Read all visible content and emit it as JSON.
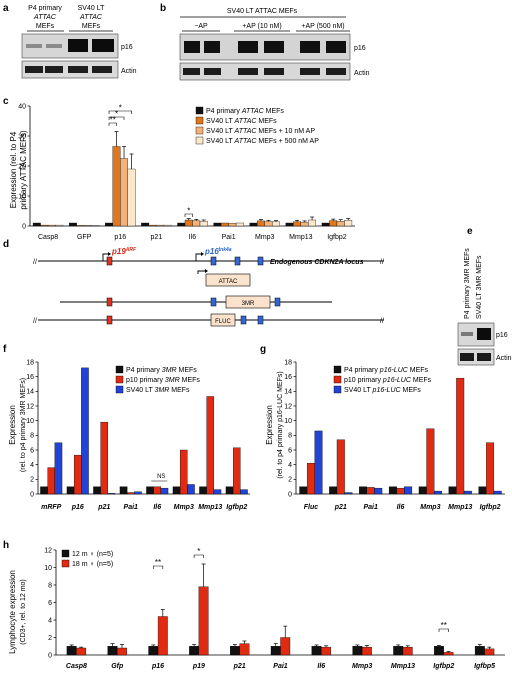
{
  "colors": {
    "black": "#111111",
    "orange": "#e0771f",
    "peach": "#f4b27a",
    "cream": "#fbe7cc",
    "red": "#e02a12",
    "blue": "#2243d8",
    "p19_label": "#d42a1a",
    "p16_label": "#2a66c8"
  },
  "panel_a": {
    "letter": "a",
    "col1_line1": "P4 primary",
    "col1_line2": "ATTAC",
    "col1_line3": "MEFs",
    "col2_line1": "SV40 LT",
    "col2_line2": "ATTAC",
    "col2_line3": "MEFs",
    "blot_labels": [
      "p16",
      "Actin"
    ]
  },
  "panel_b": {
    "letter": "b",
    "header": "SV40 LT ATTAC MEFs",
    "lanes": [
      "−AP",
      "+AP (10 nM)",
      "+AP (500 nM)"
    ],
    "blot_labels": [
      "p16",
      "Actin"
    ]
  },
  "panel_c": {
    "letter": "c",
    "ylabel_line1": "Expression (rel. to P4",
    "ylabel_line2": "primary ATTAC MEFs)",
    "sig_labels": [
      "*",
      "*",
      "**",
      "*"
    ],
    "chart_data": {
      "type": "bar",
      "categories": [
        "Casp8",
        "GFP",
        "p16",
        "p21",
        "Il6",
        "Pai1",
        "Mmp3",
        "Mmp13",
        "Igfbp2"
      ],
      "ylim": [
        0,
        40
      ],
      "yticks": [
        "0",
        "10",
        "20",
        "30",
        "40"
      ],
      "legend": "top-right",
      "series": [
        {
          "name": "P4 primary ATTAC MEFs",
          "values": [
            1,
            1,
            1,
            1,
            1,
            1,
            1,
            1,
            1
          ],
          "errors": [
            0,
            0,
            0,
            0,
            0,
            0,
            0,
            0,
            0
          ]
        },
        {
          "name": "SV40 LT ATTAC MEFs",
          "values": [
            0.3,
            0.2,
            26.5,
            0.3,
            2.0,
            1.0,
            1.7,
            1.4,
            1.8
          ],
          "errors": [
            0,
            0,
            5,
            0,
            0.5,
            0,
            0.5,
            0.5,
            0.5
          ]
        },
        {
          "name": "SV40 LT ATTAC MEFs + 10 nM AP",
          "values": [
            0.3,
            0.2,
            22.5,
            0.3,
            1.8,
            0.9,
            1.5,
            1.3,
            1.6
          ],
          "errors": [
            0,
            0,
            4,
            0,
            0.4,
            0,
            0.4,
            0.4,
            0.5
          ]
        },
        {
          "name": "SV40 LT ATTAC MEFs + 500 nM AP",
          "values": [
            0.3,
            0.2,
            19,
            0.3,
            1.6,
            1.0,
            1.4,
            2.0,
            1.9
          ],
          "errors": [
            0,
            0,
            5,
            0,
            0.4,
            0,
            0.4,
            1.0,
            0.6
          ]
        }
      ]
    }
  },
  "panel_d": {
    "letter": "d",
    "gene_p19": "p19",
    "gene_p19_sup": "ARF",
    "gene_p16": "p16",
    "gene_p16_sup": "Ink4a",
    "locus_label": "Endogenous CDKN2A locus",
    "box_attac": "ATTAC",
    "box_3mr": "3MR",
    "box_fluc": "FLUC"
  },
  "panel_e": {
    "letter": "e",
    "col1": "P4 primary 3MR MEFs",
    "col2": "SV40 LT 3MR MEFs",
    "blot_labels": [
      "p16",
      "Actin"
    ]
  },
  "panel_f": {
    "letter": "f",
    "ylabel_line1": "Expression",
    "ylabel_line2": "(rel. to p4 primary 3MR MEFs)",
    "ns_label": "NS",
    "chart_data": {
      "type": "bar",
      "categories": [
        "mRFP",
        "p16",
        "p21",
        "Pai1",
        "Il6",
        "Mmp3",
        "Mmp13",
        "Igfbp2"
      ],
      "ylim": [
        0,
        18
      ],
      "yticks": [
        "0",
        "2",
        "4",
        "6",
        "8",
        "10",
        "12",
        "14",
        "16",
        "18"
      ],
      "legend": "top-right",
      "series": [
        {
          "name": "P4 primary 3MR MEFs",
          "values": [
            1,
            1,
            1,
            1,
            1,
            1,
            1,
            1
          ]
        },
        {
          "name": "p10 primary 3MR MEFs",
          "values": [
            3.6,
            5.3,
            9.8,
            0.2,
            1.0,
            6.0,
            13.3,
            6.3
          ]
        },
        {
          "name": "SV40 LT 3MR MEFs",
          "values": [
            7.0,
            17.2,
            0.1,
            0.3,
            0.8,
            1.3,
            0.6,
            0.6
          ]
        }
      ]
    }
  },
  "panel_g": {
    "letter": "g",
    "ylabel_line1": "Expression",
    "ylabel_line2": "(rel. to p4 primary p16-LUC MEFs)",
    "chart_data": {
      "type": "bar",
      "categories": [
        "Fluc",
        "p21",
        "Pai1",
        "Il6",
        "Mmp3",
        "Mmp13",
        "Igfbp2"
      ],
      "ylim": [
        0,
        18
      ],
      "yticks": [
        "0",
        "2",
        "4",
        "6",
        "8",
        "10",
        "12",
        "14",
        "16",
        "18"
      ],
      "legend": "top-right",
      "series": [
        {
          "name": "P4 primary p16-LUC MEFs",
          "values": [
            1,
            1,
            1,
            1,
            1,
            1,
            1
          ]
        },
        {
          "name": "p10 primary p16-LUC MEFs",
          "values": [
            4.2,
            7.4,
            0.9,
            0.8,
            8.9,
            15.8,
            7.0
          ]
        },
        {
          "name": "SV40 LT p16-LUC MEFs",
          "values": [
            8.6,
            0.2,
            0.8,
            1.0,
            0.4,
            0.4,
            0.4
          ]
        }
      ]
    }
  },
  "panel_h": {
    "letter": "h",
    "ylabel_line1": "Lymphocyte expression",
    "ylabel_line2": "(CD3+, rel. to 12 mo)",
    "sig_labels": [
      "**",
      "*",
      "**"
    ],
    "chart_data": {
      "type": "bar",
      "categories": [
        "Casp8",
        "Gfp",
        "p16",
        "p19",
        "p21",
        "Pai1",
        "Il6",
        "Mmp3",
        "Mmp13",
        "Igfbp2",
        "Igfbp5"
      ],
      "ylim": [
        0,
        12
      ],
      "yticks": [
        "0",
        "2",
        "4",
        "6",
        "8",
        "10",
        "12"
      ],
      "legend": "top-left",
      "series": [
        {
          "name": "12 m ♀ (n=5)",
          "values": [
            1.0,
            1.0,
            1.0,
            1.0,
            1.0,
            1.0,
            1.0,
            1.0,
            1.0,
            1.0,
            1.0
          ],
          "errors": [
            0.15,
            0.3,
            0.15,
            0.2,
            0.2,
            0.3,
            0.15,
            0.15,
            0.15,
            0.1,
            0.2
          ]
        },
        {
          "name": "18 m ♀ (n=5)",
          "values": [
            0.8,
            0.8,
            4.4,
            7.8,
            1.3,
            2.0,
            0.9,
            0.9,
            0.9,
            0.3,
            0.7
          ],
          "errors": [
            0.1,
            0.4,
            0.8,
            2.6,
            0.3,
            1.3,
            0.15,
            0.2,
            0.15,
            0.1,
            0.2
          ]
        }
      ]
    }
  }
}
